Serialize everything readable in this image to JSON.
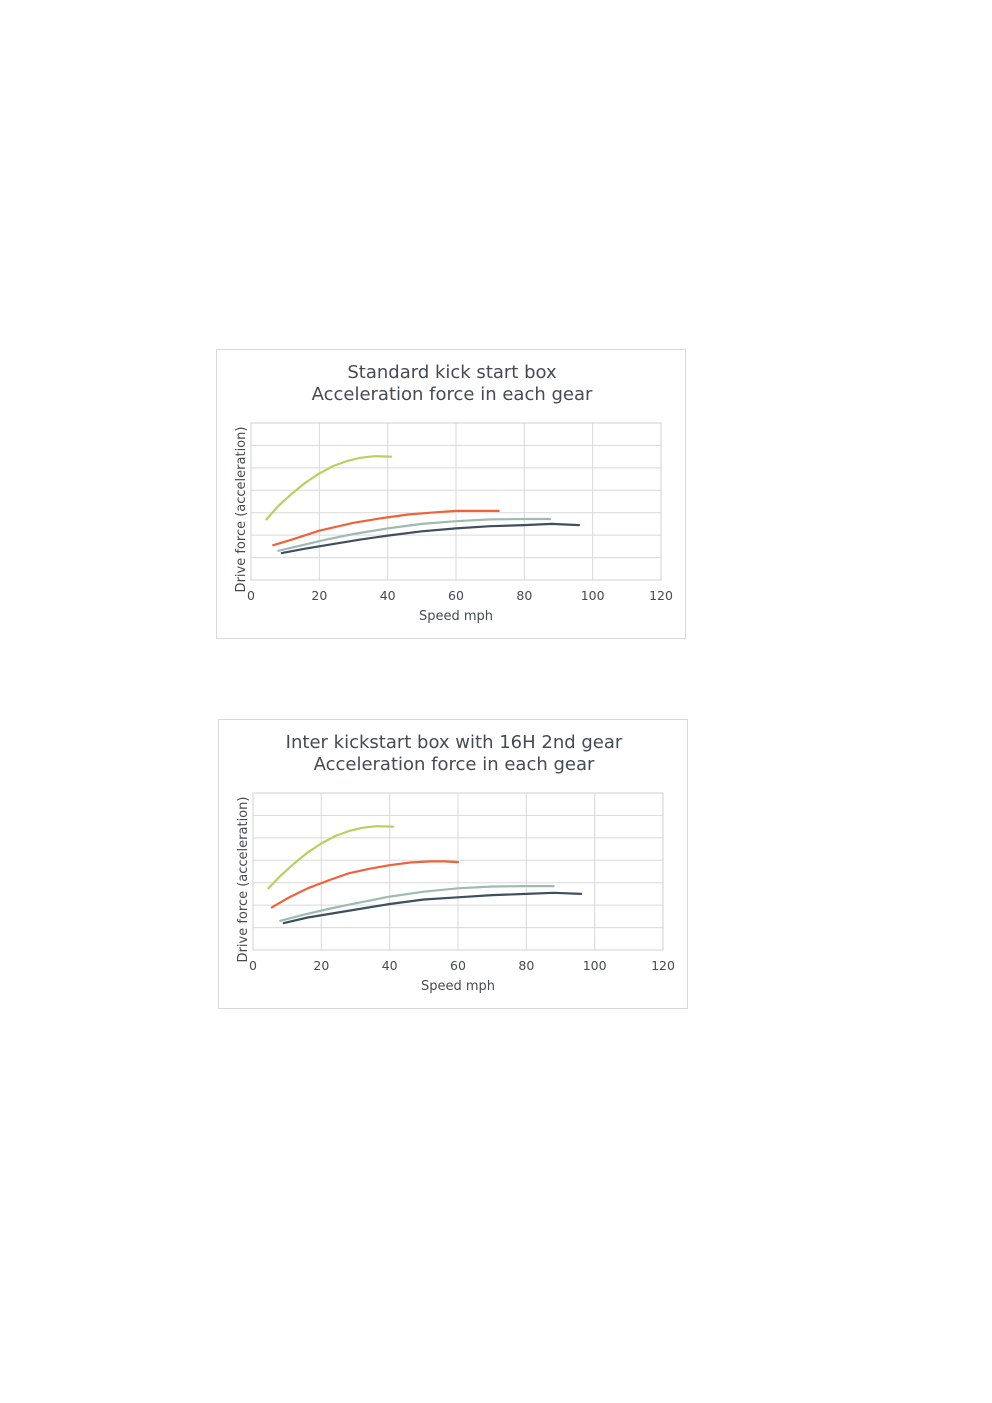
{
  "chart_data": [
    {
      "type": "line",
      "title": "Standard kick start box",
      "subtitle": "Acceleration force in each gear",
      "xlabel": "Speed mph",
      "ylabel": "Drive force (acceleration)",
      "xlim": [
        0,
        120
      ],
      "ylim": [
        0,
        7
      ],
      "x_ticks": [
        "0",
        "20",
        "40",
        "60",
        "80",
        "100",
        "120"
      ],
      "grid": true,
      "legend": "none",
      "series": [
        {
          "color": "#b5d160",
          "points": [
            [
              4.5,
              2.7
            ],
            [
              8,
              3.3
            ],
            [
              12,
              3.85
            ],
            [
              16,
              4.35
            ],
            [
              20,
              4.75
            ],
            [
              24,
              5.08
            ],
            [
              28,
              5.3
            ],
            [
              32,
              5.45
            ],
            [
              36,
              5.52
            ],
            [
              41,
              5.5
            ]
          ]
        },
        {
          "color": "#f0623a",
          "points": [
            [
              6.5,
              1.55
            ],
            [
              12,
              1.8
            ],
            [
              20,
              2.2
            ],
            [
              30,
              2.55
            ],
            [
              38,
              2.75
            ],
            [
              46,
              2.92
            ],
            [
              54,
              3.02
            ],
            [
              60,
              3.08
            ],
            [
              66,
              3.08
            ],
            [
              72.5,
              3.08
            ]
          ]
        },
        {
          "color": "#9fbab0",
          "points": [
            [
              8,
              1.3
            ],
            [
              15,
              1.55
            ],
            [
              22,
              1.8
            ],
            [
              30,
              2.05
            ],
            [
              40,
              2.3
            ],
            [
              50,
              2.5
            ],
            [
              60,
              2.62
            ],
            [
              70,
              2.7
            ],
            [
              80,
              2.72
            ],
            [
              87.5,
              2.72
            ]
          ]
        },
        {
          "color": "#3e5060",
          "points": [
            [
              9,
              1.2
            ],
            [
              16,
              1.4
            ],
            [
              24,
              1.6
            ],
            [
              32,
              1.8
            ],
            [
              40,
              1.98
            ],
            [
              50,
              2.17
            ],
            [
              60,
              2.3
            ],
            [
              70,
              2.4
            ],
            [
              80,
              2.45
            ],
            [
              88,
              2.5
            ],
            [
              96,
              2.45
            ]
          ]
        }
      ]
    },
    {
      "type": "line",
      "title": "Inter kickstart box with 16H 2nd gear",
      "subtitle": "Acceleration force in each gear",
      "xlabel": "Speed mph",
      "ylabel": "Drive force (acceleration)",
      "xlim": [
        0,
        120
      ],
      "ylim": [
        0,
        7
      ],
      "x_ticks": [
        "0",
        "20",
        "40",
        "60",
        "80",
        "100",
        "120"
      ],
      "grid": true,
      "legend": "none",
      "series": [
        {
          "color": "#b5d160",
          "points": [
            [
              4.5,
              2.75
            ],
            [
              8,
              3.3
            ],
            [
              12,
              3.85
            ],
            [
              16,
              4.35
            ],
            [
              20,
              4.75
            ],
            [
              24,
              5.08
            ],
            [
              28,
              5.3
            ],
            [
              32,
              5.45
            ],
            [
              36,
              5.52
            ],
            [
              41,
              5.5
            ]
          ]
        },
        {
          "color": "#f0623a",
          "points": [
            [
              5.5,
              1.9
            ],
            [
              10,
              2.3
            ],
            [
              16,
              2.75
            ],
            [
              22,
              3.1
            ],
            [
              28,
              3.42
            ],
            [
              34,
              3.62
            ],
            [
              40,
              3.78
            ],
            [
              46,
              3.9
            ],
            [
              52,
              3.95
            ],
            [
              56,
              3.95
            ],
            [
              60,
              3.92
            ]
          ]
        },
        {
          "color": "#9fbab0",
          "points": [
            [
              8,
              1.3
            ],
            [
              15,
              1.58
            ],
            [
              22,
              1.83
            ],
            [
              30,
              2.08
            ],
            [
              40,
              2.38
            ],
            [
              50,
              2.6
            ],
            [
              60,
              2.75
            ],
            [
              70,
              2.83
            ],
            [
              80,
              2.85
            ],
            [
              88,
              2.85
            ]
          ]
        },
        {
          "color": "#3e5060",
          "points": [
            [
              9,
              1.2
            ],
            [
              16,
              1.45
            ],
            [
              24,
              1.65
            ],
            [
              32,
              1.85
            ],
            [
              40,
              2.05
            ],
            [
              50,
              2.25
            ],
            [
              60,
              2.35
            ],
            [
              70,
              2.45
            ],
            [
              80,
              2.5
            ],
            [
              88,
              2.55
            ],
            [
              96,
              2.5
            ]
          ]
        }
      ]
    }
  ]
}
